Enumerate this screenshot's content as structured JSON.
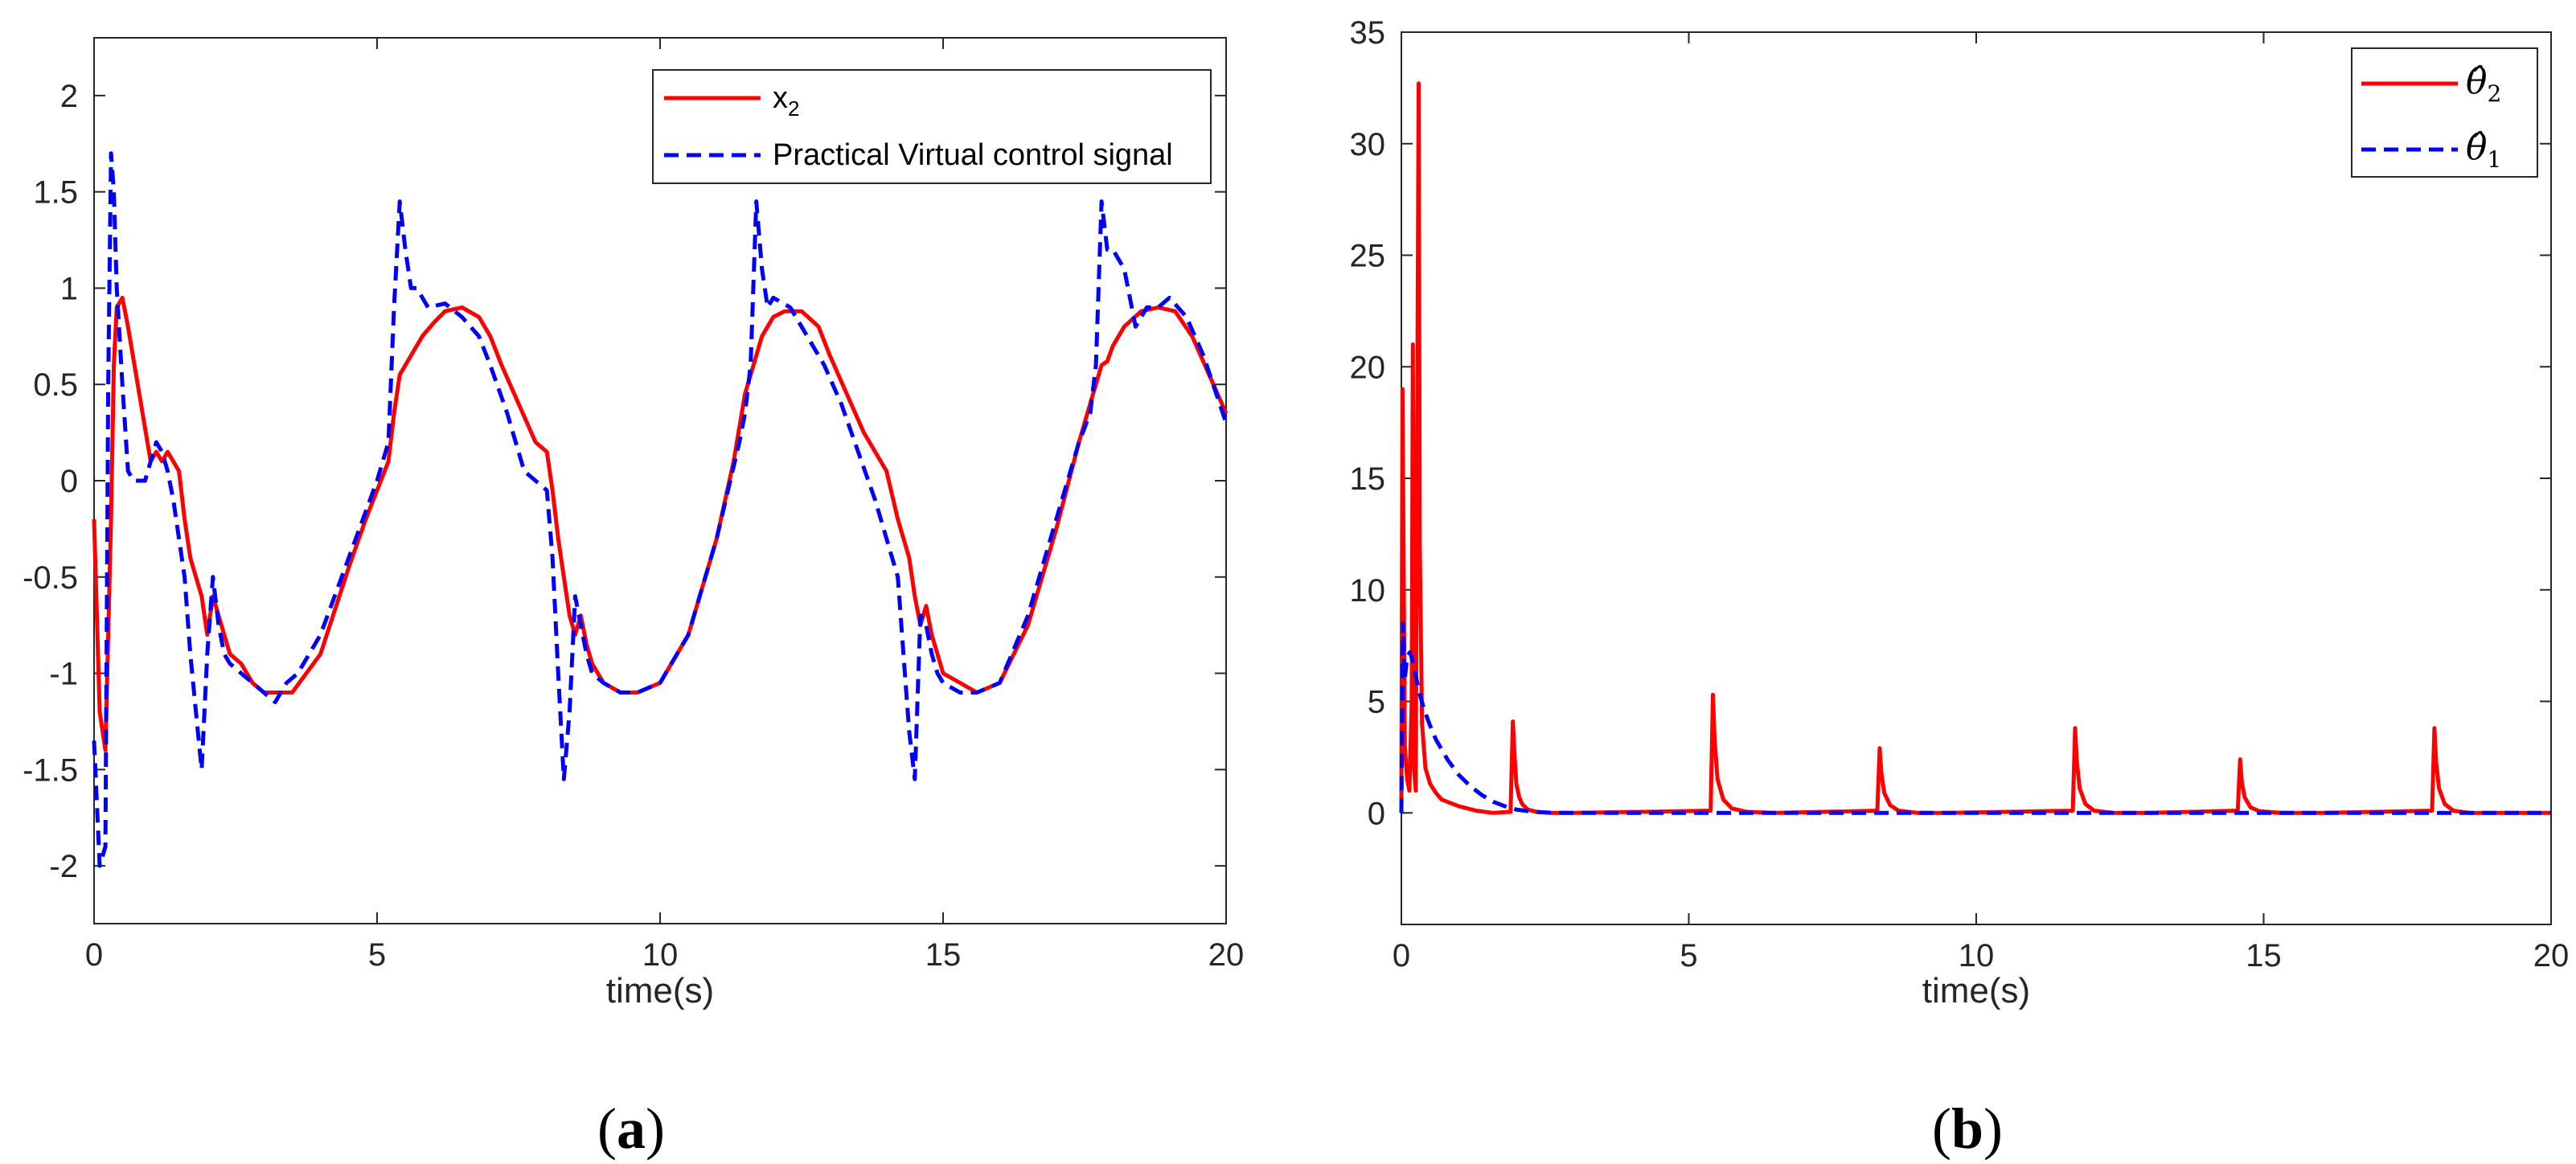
{
  "chart_data": [
    {
      "type": "line",
      "panel_label": "a",
      "xlabel": "time(s)",
      "ylabel": "",
      "xlim": [
        0,
        20
      ],
      "ylim": [
        -2.3,
        2.3
      ],
      "xticks": [
        0,
        5,
        10,
        15,
        20
      ],
      "yticks": [
        -2,
        -1.5,
        -1,
        -0.5,
        0,
        0.5,
        1,
        1.5,
        2
      ],
      "xtick_labels": [
        "0",
        "5",
        "10",
        "15",
        "20"
      ],
      "ytick_labels": [
        "-2",
        "-1.5",
        "-1",
        "-0.5",
        "0",
        "0.5",
        "1",
        "1.5",
        "2"
      ],
      "grid": false,
      "legend_position": "top-right",
      "series": [
        {
          "name": "x",
          "name_subscript": "2",
          "color": "#ff0000",
          "style": "solid",
          "x": [
            0,
            0.1,
            0.2,
            0.3,
            0.35,
            0.4,
            0.5,
            0.6,
            0.8,
            1.0,
            1.1,
            1.2,
            1.3,
            1.4,
            1.5,
            1.6,
            1.7,
            1.8,
            1.9,
            2.0,
            2.1,
            2.2,
            2.3,
            2.4,
            2.6,
            2.8,
            3.0,
            3.2,
            3.5,
            4.0,
            4.5,
            4.8,
            5.0,
            5.2,
            5.3,
            5.4,
            5.5,
            5.6,
            5.8,
            6.0,
            6.2,
            6.5,
            6.8,
            7.0,
            7.2,
            7.5,
            7.8,
            8.0,
            8.1,
            8.2,
            8.3,
            8.4,
            8.5,
            8.6,
            8.7,
            8.8,
            9.0,
            9.3,
            9.6,
            10.0,
            10.5,
            11.0,
            11.3,
            11.5,
            11.7,
            11.8,
            11.9,
            12.0,
            12.2,
            12.5,
            12.8,
            13.0,
            13.3,
            13.6,
            14.0,
            14.2,
            14.4,
            14.5,
            14.6,
            14.7,
            14.8,
            14.9,
            15.0,
            15.3,
            15.6,
            16.0,
            16.5,
            17.0,
            17.4,
            17.6,
            17.8,
            17.9,
            18.0,
            18.2,
            18.5,
            18.8,
            19.1,
            19.4,
            19.7,
            20.0
          ],
          "y": [
            -0.2,
            -1.2,
            -1.4,
            -0.2,
            0.6,
            0.9,
            0.95,
            0.8,
            0.45,
            0.1,
            0.15,
            0.1,
            0.15,
            0.1,
            0.05,
            -0.2,
            -0.4,
            -0.5,
            -0.6,
            -0.8,
            -0.6,
            -0.7,
            -0.8,
            -0.9,
            -0.95,
            -1.05,
            -1.1,
            -1.1,
            -1.1,
            -0.9,
            -0.45,
            -0.2,
            -0.05,
            0.1,
            0.35,
            0.55,
            0.6,
            0.65,
            0.75,
            0.82,
            0.88,
            0.9,
            0.85,
            0.75,
            0.6,
            0.4,
            0.2,
            0.15,
            -0.05,
            -0.3,
            -0.5,
            -0.7,
            -0.8,
            -0.7,
            -0.85,
            -0.95,
            -1.05,
            -1.1,
            -1.1,
            -1.05,
            -0.8,
            -0.3,
            0.1,
            0.45,
            0.65,
            0.75,
            0.8,
            0.85,
            0.88,
            0.88,
            0.8,
            0.65,
            0.45,
            0.25,
            0.05,
            -0.2,
            -0.4,
            -0.6,
            -0.75,
            -0.65,
            -0.8,
            -0.9,
            -1.0,
            -1.05,
            -1.1,
            -1.05,
            -0.75,
            -0.25,
            0.2,
            0.4,
            0.6,
            0.62,
            0.7,
            0.8,
            0.88,
            0.9,
            0.88,
            0.75,
            0.55,
            0.35
          ]
        },
        {
          "name": "Practical Virtual control signal",
          "color": "#0000ff",
          "style": "dashed",
          "x": [
            0,
            0.1,
            0.2,
            0.25,
            0.3,
            0.35,
            0.4,
            0.5,
            0.6,
            0.7,
            0.8,
            0.9,
            1.0,
            1.1,
            1.2,
            1.3,
            1.4,
            1.5,
            1.6,
            1.7,
            1.8,
            1.9,
            2.0,
            2.1,
            2.2,
            2.3,
            2.4,
            2.6,
            2.8,
            3.0,
            3.2,
            3.4,
            3.6,
            4.0,
            4.5,
            5.0,
            5.2,
            5.3,
            5.4,
            5.5,
            5.6,
            5.7,
            5.9,
            6.2,
            6.5,
            6.8,
            7.0,
            7.3,
            7.6,
            7.8,
            8.0,
            8.1,
            8.2,
            8.3,
            8.4,
            8.5,
            8.6,
            8.7,
            8.8,
            9.0,
            9.3,
            9.6,
            10.0,
            10.5,
            11.0,
            11.4,
            11.5,
            11.6,
            11.7,
            11.8,
            11.9,
            12.0,
            12.3,
            12.6,
            12.9,
            13.2,
            13.5,
            13.8,
            14.0,
            14.2,
            14.3,
            14.4,
            14.5,
            14.6,
            14.7,
            14.8,
            14.9,
            15.0,
            15.3,
            15.6,
            16.0,
            16.5,
            17.0,
            17.4,
            17.6,
            17.7,
            17.8,
            17.9,
            18.0,
            18.2,
            18.4,
            18.6,
            18.8,
            19.0,
            19.3,
            19.6,
            20.0
          ],
          "y": [
            -1.35,
            -2.0,
            -1.9,
            0.5,
            1.7,
            1.5,
            1.0,
            0.5,
            0.05,
            0.0,
            0.0,
            0.0,
            0.1,
            0.2,
            0.15,
            0.05,
            -0.1,
            -0.3,
            -0.5,
            -0.9,
            -1.2,
            -1.5,
            -0.9,
            -0.5,
            -0.75,
            -0.9,
            -0.95,
            -1.0,
            -1.05,
            -1.1,
            -1.15,
            -1.05,
            -1.0,
            -0.8,
            -0.4,
            0.0,
            0.2,
            0.9,
            1.45,
            1.2,
            1.0,
            1.0,
            0.9,
            0.92,
            0.85,
            0.75,
            0.6,
            0.35,
            0.05,
            0.0,
            -0.05,
            -0.4,
            -1.0,
            -1.55,
            -1.2,
            -0.6,
            -0.75,
            -0.9,
            -1.0,
            -1.05,
            -1.1,
            -1.1,
            -1.05,
            -0.8,
            -0.3,
            0.2,
            0.35,
            0.6,
            1.45,
            1.1,
            0.9,
            0.95,
            0.9,
            0.75,
            0.6,
            0.4,
            0.15,
            -0.1,
            -0.3,
            -0.5,
            -0.9,
            -1.3,
            -1.55,
            -0.7,
            -0.75,
            -0.9,
            -1.0,
            -1.05,
            -1.1,
            -1.1,
            -1.05,
            -0.7,
            -0.2,
            0.2,
            0.35,
            0.6,
            1.45,
            1.2,
            1.2,
            1.1,
            0.8,
            0.9,
            0.9,
            0.95,
            0.85,
            0.65,
            0.3
          ]
        }
      ]
    },
    {
      "type": "line",
      "panel_label": "b",
      "xlabel": "time(s)",
      "ylabel": "",
      "xlim": [
        0,
        20
      ],
      "ylim": [
        -5,
        35
      ],
      "xticks": [
        0,
        5,
        10,
        15,
        20
      ],
      "yticks": [
        0,
        5,
        10,
        15,
        20,
        25,
        30,
        35
      ],
      "xtick_labels": [
        "0",
        "5",
        "10",
        "15",
        "20"
      ],
      "ytick_labels": [
        "0",
        "5",
        "10",
        "15",
        "20",
        "25",
        "30",
        "35"
      ],
      "grid": false,
      "legend_position": "top-right",
      "series": [
        {
          "name": "θ̂",
          "name_subscript": "2",
          "color": "#ff0000",
          "style": "solid",
          "x": [
            0,
            0.02,
            0.06,
            0.1,
            0.14,
            0.18,
            0.2,
            0.22,
            0.25,
            0.28,
            0.3,
            0.32,
            0.36,
            0.42,
            0.5,
            0.6,
            0.7,
            0.8,
            1.0,
            1.3,
            1.6,
            1.9,
            1.94,
            1.97,
            2.0,
            2.05,
            2.1,
            2.2,
            2.35,
            2.6,
            3.0,
            5.38,
            5.42,
            5.45,
            5.5,
            5.6,
            5.75,
            6.0,
            6.5,
            8.28,
            8.32,
            8.35,
            8.4,
            8.5,
            8.65,
            9.0,
            9.5,
            11.68,
            11.72,
            11.75,
            11.8,
            11.9,
            12.05,
            12.4,
            13.0,
            14.55,
            14.59,
            14.62,
            14.67,
            14.77,
            14.92,
            15.3,
            16.0,
            17.93,
            17.97,
            18.0,
            18.05,
            18.15,
            18.3,
            18.6,
            19.2,
            20.0
          ],
          "y": [
            0.5,
            19.0,
            3.0,
            1.5,
            1.0,
            5.0,
            21.0,
            2.0,
            1.0,
            20.0,
            32.7,
            12.0,
            4.0,
            2.0,
            1.3,
            0.9,
            0.6,
            0.5,
            0.3,
            0.1,
            0.0,
            0.05,
            4.1,
            2.5,
            1.3,
            0.7,
            0.4,
            0.15,
            0.05,
            0.0,
            0.0,
            0.1,
            5.3,
            3.2,
            1.5,
            0.6,
            0.2,
            0.05,
            0.0,
            0.1,
            2.9,
            1.8,
            0.9,
            0.35,
            0.1,
            0.0,
            0.0,
            0.1,
            3.8,
            2.3,
            1.1,
            0.4,
            0.1,
            0.0,
            0.0,
            0.1,
            2.4,
            1.4,
            0.7,
            0.25,
            0.08,
            0.0,
            0.0,
            0.1,
            3.8,
            2.3,
            1.1,
            0.4,
            0.1,
            0.0,
            0.0,
            0.0
          ]
        },
        {
          "name": "θ̂",
          "name_subscript": "1",
          "color": "#0000ff",
          "style": "dashed",
          "x": [
            0,
            0.03,
            0.06,
            0.1,
            0.15,
            0.2,
            0.3,
            0.4,
            0.5,
            0.6,
            0.8,
            1.0,
            1.2,
            1.4,
            1.6,
            1.8,
            2.0,
            2.3,
            2.6,
            3.0,
            5.0,
            10.0,
            15.0,
            20.0
          ],
          "y": [
            0.0,
            8.5,
            6.0,
            7.0,
            7.2,
            6.8,
            5.5,
            4.6,
            3.9,
            3.3,
            2.4,
            1.7,
            1.2,
            0.8,
            0.5,
            0.3,
            0.15,
            0.05,
            0.01,
            0.0,
            0.0,
            0.0,
            0.0,
            0.0
          ]
        }
      ]
    }
  ],
  "captions": [
    {
      "label": "a"
    },
    {
      "label": "b"
    }
  ]
}
